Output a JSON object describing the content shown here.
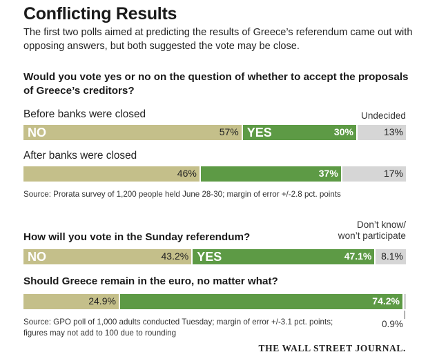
{
  "header": {
    "title": "Conflicting Results",
    "subtitle": "The first two polls aimed at predicting the results of Greece’s referendum came out with opposing answers, but both suggested the vote may be close."
  },
  "poll1": {
    "question": "Would you vote yes or no on the question of whether to accept the proposals of Greece’s creditors?",
    "undecided_label": "Undecided",
    "source": "Source: Prorata survey of 1,200 people held June 28-30; margin of error +/-2.8 pct. points"
  },
  "poll2": {
    "question1": "How will you vote in the Sunday referendum?",
    "dont_know_label_1": "Don’t know/",
    "dont_know_label_2": "won’t participate",
    "question2": "Should Greece remain in the euro, no matter what?",
    "source_line1": "Source: GPO poll of 1,000 adults conducted Tuesday; margin of error +/-3.1 pct. points;",
    "source_line2": "figures may not add to 100 due to rounding",
    "tiny_value_label": "0.9%"
  },
  "footer": {
    "credit": "THE WALL STREET JOURNAL."
  },
  "colors": {
    "no": "#c4bf8a",
    "yes": "#5d9a45",
    "undecided": "#d6d6d6"
  },
  "chart_data": [
    {
      "type": "bar",
      "stacked": true,
      "orientation": "horizontal",
      "categories": [
        "Before banks were closed",
        "After banks were closed"
      ],
      "series": [
        {
          "name": "NO",
          "values": [
            57,
            46
          ],
          "labels": [
            "57%",
            "46%"
          ]
        },
        {
          "name": "YES",
          "values": [
            30,
            37
          ],
          "labels": [
            "30%",
            "37%"
          ]
        },
        {
          "name": "Undecided",
          "values": [
            13,
            17
          ],
          "labels": [
            "13%",
            "17%"
          ]
        }
      ]
    },
    {
      "type": "bar",
      "stacked": true,
      "orientation": "horizontal",
      "categories": [
        "How will you vote in the Sunday referendum?",
        "Should Greece remain in the euro, no matter what?"
      ],
      "series": [
        {
          "name": "NO",
          "values": [
            43.2,
            24.9
          ],
          "labels": [
            "43.2%",
            "24.9%"
          ]
        },
        {
          "name": "YES",
          "values": [
            47.1,
            74.2
          ],
          "labels": [
            "47.1%",
            "74.2%"
          ]
        },
        {
          "name": "Don’t know/won’t participate",
          "values": [
            8.1,
            0.9
          ],
          "labels": [
            "8.1%",
            ""
          ]
        }
      ]
    }
  ]
}
